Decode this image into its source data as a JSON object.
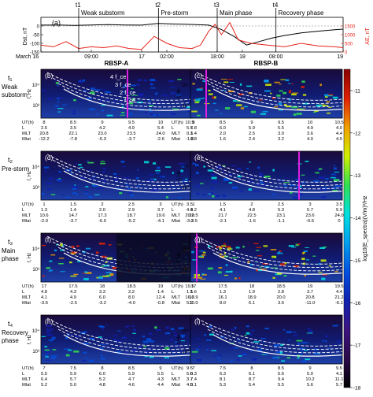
{
  "chart_data": [
    {
      "type": "line",
      "panel_label": "(a)",
      "ylabel_left": "Dst, nT",
      "ylabel_right": "AE, nT",
      "ylim_left": [
        -150,
        50
      ],
      "yticks_left": [
        "0",
        "-50",
        "-100",
        "-150"
      ],
      "ylim_right": [
        0,
        2000
      ],
      "yticks_right": [
        "1500",
        "1000",
        "500",
        "0"
      ],
      "x_tick_labels": [
        "March 16",
        "09:00",
        "17",
        "02:00",
        "18:00",
        "18",
        "08:00",
        "19"
      ],
      "event_labels": [
        {
          "time": "t1",
          "label": "Weak substorm"
        },
        {
          "time": "t2",
          "label": "Pre-storm"
        },
        {
          "time": "t3",
          "label": "Main phase"
        },
        {
          "time": "t4",
          "label": "Recovery phase"
        }
      ],
      "series": [
        {
          "name": "Dst",
          "color": "#000000",
          "x_hours": [
            0,
            4,
            8,
            12,
            16,
            20,
            24,
            26,
            28,
            31,
            34,
            37,
            40,
            43,
            46,
            49,
            52,
            55,
            58,
            62,
            66,
            70,
            72
          ],
          "values": [
            5,
            6,
            3,
            6,
            8,
            6,
            5,
            10,
            15,
            12,
            10,
            8,
            5,
            -20,
            -60,
            -110,
            -90,
            -70,
            -55,
            -40,
            -30,
            -22,
            -18
          ]
        },
        {
          "name": "AE",
          "color": "#e8231a",
          "x_hours": [
            0,
            3,
            6,
            9,
            12,
            15,
            18,
            21,
            24,
            27,
            30,
            33,
            36,
            38,
            40,
            41.5,
            43,
            45,
            47,
            50,
            54,
            58,
            62,
            66,
            70,
            72
          ],
          "values": [
            400,
            300,
            600,
            200,
            300,
            250,
            350,
            200,
            150,
            900,
            500,
            250,
            200,
            400,
            1200,
            1600,
            1000,
            1700,
            700,
            500,
            400,
            300,
            500,
            350,
            300,
            250
          ]
        }
      ]
    },
    {
      "type": "heatmap",
      "colorbar_label": "log10(E_spectra)(V/m)²/Hz",
      "colorbar_ticks": [
        "-11",
        "-12",
        "-13",
        "-14",
        "-15",
        "-16",
        "-17",
        "-18"
      ],
      "colorbar_range": [
        -18,
        -10.5
      ],
      "colorbar_colors": [
        "#000000",
        "#2a0a4a",
        "#3d1580",
        "#1020b0",
        "#0050e0",
        "#00a0f0",
        "#00e0e0",
        "#30e050",
        "#d0f000",
        "#f0a000",
        "#e02000",
        "#8a0000"
      ],
      "column_titles": [
        "RBSP-A",
        "RBSP-B"
      ],
      "ylabel": "f, Hz",
      "yticks": [
        "10⁴",
        "10³"
      ],
      "curve_labels": [
        "4 f_ce",
        "3 f_ce",
        "2 f_ce",
        "f_ce"
      ],
      "row_labels": [
        {
          "t": "t₁",
          "name": "Weak substorm"
        },
        {
          "t": "t₂",
          "name": "Pre-storm"
        },
        {
          "t": "t₃",
          "name": "Main phase"
        },
        {
          "t": "t₄",
          "name": "Recovery phase"
        }
      ],
      "panels": [
        {
          "id": "(b)",
          "row": 0,
          "col": 0,
          "ut": [
            "8",
            "8.5",
            "9",
            "9.5",
            "10",
            "10.5"
          ],
          "L": [
            "2.5",
            "3.5",
            "4.2",
            "4.9",
            "5.4",
            "5.7"
          ],
          "MLT": [
            "20.8",
            "22.1",
            "23.0",
            "23.5",
            "24.0",
            "0.3"
          ],
          "Mlat": [
            "-12.2",
            "-7.8",
            "-5.3",
            "-3.7",
            "-2.6",
            "-1.8"
          ]
        },
        {
          "id": "(c)",
          "row": 0,
          "col": 1,
          "ut": [
            "8",
            "8.5",
            "9",
            "9.5",
            "10",
            "10.5"
          ],
          "L": [
            "5.8",
            "6.0",
            "5.9",
            "5.5",
            "4.9",
            "4.0"
          ],
          "MLT": [
            "1.4",
            "2.0",
            "2.5",
            "3.0",
            "3.6",
            "4.4"
          ],
          "Mlat": [
            "0.8",
            "1.6",
            "2.4",
            "3.2",
            "4.0",
            "4.5"
          ]
        },
        {
          "id": "(d)",
          "row": 1,
          "col": 0,
          "ut": [
            "1",
            "1.5",
            "2",
            "2.5",
            "3",
            "3.5"
          ],
          "L": [
            "1.3",
            "1.4",
            "2.0",
            "2.9",
            "3.7",
            "4.4"
          ],
          "MLT": [
            "10.6",
            "14.7",
            "17.3",
            "18.7",
            "19.6",
            "20.2"
          ],
          "Mlat": [
            "-2.0",
            "-3.7",
            "-6.0",
            "-5.2",
            "-4.1",
            "-3.3"
          ]
        },
        {
          "id": "(e)",
          "row": 1,
          "col": 1,
          "ut": [
            "1",
            "1.5",
            "2",
            "2.5",
            "3",
            "3.5"
          ],
          "L": [
            "3.2",
            "4.1",
            "4.8",
            "5.3",
            "5.7",
            "5.9"
          ],
          "MLT": [
            "20.5",
            "21.7",
            "22.5",
            "23.1",
            "23.6",
            "24.0"
          ],
          "Mlat": [
            "-2.5",
            "-2.1",
            "-1.6",
            "-1.1",
            "-0.6",
            "0"
          ]
        },
        {
          "id": "(f)",
          "row": 2,
          "col": 0,
          "ut": [
            "17",
            "17.5",
            "18",
            "18.5",
            "19",
            "19.5"
          ],
          "L": [
            "4.8",
            "4.3",
            "3.3",
            "2.2",
            "1.4",
            "1.5"
          ],
          "MLT": [
            "4.1",
            "4.9",
            "6.0",
            "8.0",
            "12.4",
            "16.6"
          ],
          "Mlat": [
            "-3.6",
            "-2.5",
            "-3.2",
            "-4.0",
            "-0.8",
            "5.2"
          ]
        },
        {
          "id": "(g)",
          "row": 2,
          "col": 1,
          "ut": [
            "17",
            "17.5",
            "18",
            "18.5",
            "19",
            "19.5"
          ],
          "L": [
            "1.6",
            "1.3",
            "1.9",
            "2.8",
            "3.7",
            "4.4"
          ],
          "MLT": [
            "13.9",
            "16.1",
            "18.9",
            "20.0",
            "20.8",
            "21.2"
          ],
          "Mlat": [
            "10.0",
            "8.0",
            "6.1",
            "3.6",
            "-11.0",
            "-6.1"
          ]
        },
        {
          "id": "(h)",
          "row": 3,
          "col": 0,
          "ut": [
            "7",
            "7.5",
            "8",
            "8.5",
            "9",
            "9.5"
          ],
          "L": [
            "5.5",
            "5.9",
            "6.0",
            "5.9",
            "5.5",
            "5.0"
          ],
          "MLT": [
            "6.4",
            "5.7",
            "5.2",
            "4.7",
            "4.3",
            "3.7"
          ],
          "Mlat": [
            "5.2",
            "5.0",
            "4.8",
            "4.6",
            "4.4",
            "4.0"
          ]
        },
        {
          "id": "(i)",
          "row": 3,
          "col": 1,
          "ut": [
            "7",
            "7.5",
            "8",
            "8.5",
            "9",
            "9.5"
          ],
          "L": [
            "6.3",
            "6.3",
            "6.1",
            "5.6",
            "5.0",
            "4.1"
          ],
          "MLT": [
            "7.4",
            "8.1",
            "8.7",
            "9.4",
            "10.2",
            "11.1"
          ],
          "Mlat": [
            "5.1",
            "5.3",
            "5.4",
            "5.5",
            "5.6",
            "5.7"
          ]
        }
      ]
    }
  ]
}
